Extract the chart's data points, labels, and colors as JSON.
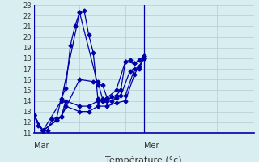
{
  "bg_color": "#d8eef0",
  "grid_color": "#b0ccd0",
  "line_color": "#0000aa",
  "ylim": [
    11,
    23
  ],
  "yticks": [
    11,
    12,
    13,
    14,
    15,
    16,
    17,
    18,
    19,
    20,
    21,
    22,
    23
  ],
  "xlim": [
    0,
    48
  ],
  "mar_x": 0,
  "mer_x": 24,
  "xlabel": "Température (°c)",
  "series": [
    [
      0,
      12.7,
      1,
      11.7,
      2,
      11.2,
      3,
      11.2,
      4,
      12.3,
      5,
      12.4,
      6,
      14.2,
      7,
      15.2,
      8,
      19.2,
      9,
      21.0,
      10,
      22.3,
      11,
      22.5,
      12,
      20.2,
      13,
      18.5,
      14,
      14.2,
      15,
      14.0,
      16,
      14.0,
      17,
      14.4,
      18,
      14.5,
      19,
      15.0,
      20,
      17.7,
      21,
      17.8,
      22,
      17.5,
      23,
      17.8,
      24,
      18.2
    ],
    [
      0,
      12.7,
      2,
      11.2,
      6,
      14.0,
      10,
      22.3,
      14,
      15.5,
      15,
      15.5,
      16,
      14.3,
      18,
      15.0,
      20,
      17.7,
      22,
      17.5,
      24,
      18.2
    ],
    [
      0,
      12.7,
      2,
      11.2,
      6,
      12.5,
      10,
      16.0,
      13,
      15.8,
      14,
      15.8,
      15,
      14.2,
      17,
      14.0,
      19,
      14.5,
      21,
      16.8,
      23,
      17.2,
      24,
      18.0
    ],
    [
      0,
      12.7,
      2,
      11.2,
      5,
      12.2,
      6,
      12.5,
      7,
      14.0,
      10,
      13.5,
      12,
      13.5,
      14,
      14.0,
      15,
      14.0,
      16,
      14.2,
      18,
      14.3,
      20,
      14.5,
      22,
      17.0,
      23,
      17.0,
      24,
      18.0
    ],
    [
      0,
      12.7,
      2,
      11.2,
      5,
      12.2,
      6,
      12.5,
      7,
      13.5,
      10,
      13.0,
      12,
      13.0,
      14,
      13.5,
      16,
      13.5,
      18,
      13.8,
      20,
      14.0,
      22,
      16.5,
      24,
      18.0
    ]
  ],
  "ytick_fontsize": 6,
  "xlabel_fontsize": 8,
  "mar_label": "Mar",
  "mer_label": "Mer"
}
